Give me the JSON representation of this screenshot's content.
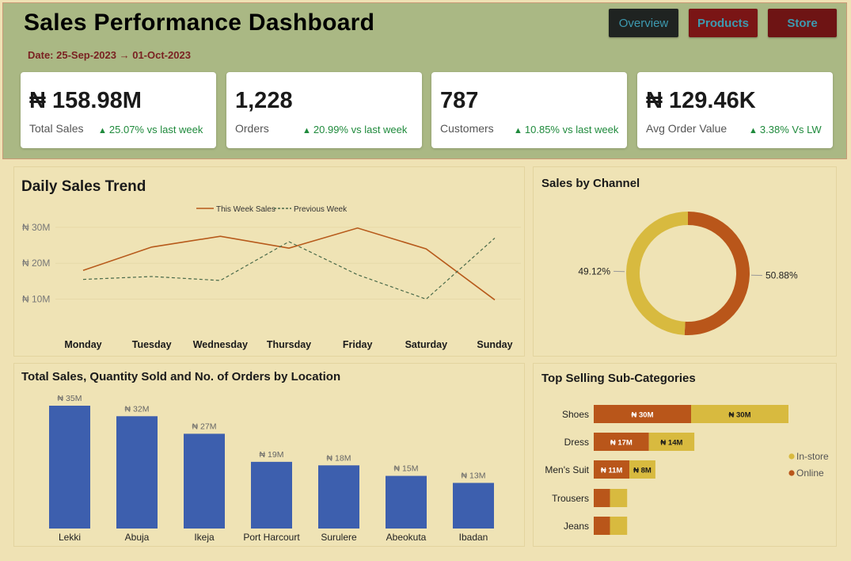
{
  "header": {
    "title": "Sales Performance Dashboard",
    "date_range": "Date: 25-Sep-2023 → 01-Oct-2023",
    "nav": {
      "overview": "Overview",
      "products": "Products",
      "store": "Store"
    }
  },
  "kpis": [
    {
      "value": "₦ 158.98M",
      "label": "Total Sales",
      "change": "25.07% vs last week"
    },
    {
      "value": "1,228",
      "label": "Orders",
      "change": "20.99% vs last week"
    },
    {
      "value": "787",
      "label": "Customers",
      "change": "10.85% vs last week"
    },
    {
      "value": "₦ 129.46K",
      "label": "Avg Order Value",
      "change": "3.38% Vs LW"
    }
  ],
  "colors": {
    "header_bg": "#aab884",
    "page_bg": "#efe2b4",
    "positive": "#1f8a3c",
    "this_week": "#b75a1b",
    "prev_week": "#4a6a4a",
    "bar_blue": "#3d5fae",
    "online": "#b9561a",
    "instore": "#d8ba3f"
  },
  "chart_data": [
    {
      "type": "line",
      "title": "Daily Sales Trend",
      "x": [
        "Monday",
        "Tuesday",
        "Wednesday",
        "Thursday",
        "Friday",
        "Saturday",
        "Sunday"
      ],
      "y_ticks": [
        "₦ 10M",
        "₦ 20M",
        "₦ 30M"
      ],
      "y_tick_values": [
        10,
        20,
        30
      ],
      "ylim": [
        3.5,
        33.5
      ],
      "series": [
        {
          "name": "This Week Sales",
          "values": [
            18,
            24.5,
            27.5,
            24.2,
            29.8,
            24,
            9.8
          ],
          "style": "solid",
          "color": "#b75a1b"
        },
        {
          "name": "Previous Week",
          "values": [
            15.5,
            16.3,
            15.2,
            26,
            16.8,
            10,
            27
          ],
          "style": "dashed",
          "color": "#4a6a4a"
        }
      ],
      "legend": "top-center",
      "grid": true
    },
    {
      "type": "pie",
      "title": "Sales by Channel",
      "donut": true,
      "slices": [
        {
          "value": 50.88,
          "label": "50.88%",
          "color": "#b9561a"
        },
        {
          "value": 49.12,
          "label": "49.12%",
          "color": "#d8ba3f"
        }
      ]
    },
    {
      "type": "bar",
      "title": "Total Sales, Quantity Sold and No. of Orders by Location",
      "categories": [
        "Lekki",
        "Abuja",
        "Ikeja",
        "Port Harcourt",
        "Surulere",
        "Abeokuta",
        "Ibadan"
      ],
      "values": [
        35,
        32,
        27,
        19,
        18,
        15,
        13
      ],
      "labels": [
        "₦ 35M",
        "₦ 32M",
        "₦ 27M",
        "₦ 19M",
        "₦ 18M",
        "₦ 15M",
        "₦ 13M"
      ],
      "ylim": [
        0,
        35
      ],
      "color": "#3d5fae"
    },
    {
      "type": "bar",
      "orientation": "horizontal",
      "stacked": true,
      "title": "Top Selling Sub-Categories",
      "categories": [
        "Shoes",
        "Dress",
        "Men's Suit",
        "Trousers",
        "Jeans"
      ],
      "series": [
        {
          "name": "Online",
          "values": [
            30,
            17,
            11,
            5,
            5
          ],
          "labels": [
            "₦ 30M",
            "₦ 17M",
            "₦ 11M",
            "",
            ""
          ],
          "color": "#b9561a"
        },
        {
          "name": "In-store",
          "values": [
            30,
            14,
            8,
            5.3,
            5.3
          ],
          "labels": [
            "₦ 30M",
            "₦ 14M",
            "₦ 8M",
            "",
            ""
          ],
          "color": "#d8ba3f"
        }
      ],
      "legend": "right",
      "legend_order": [
        "In-store",
        "Online"
      ]
    }
  ]
}
